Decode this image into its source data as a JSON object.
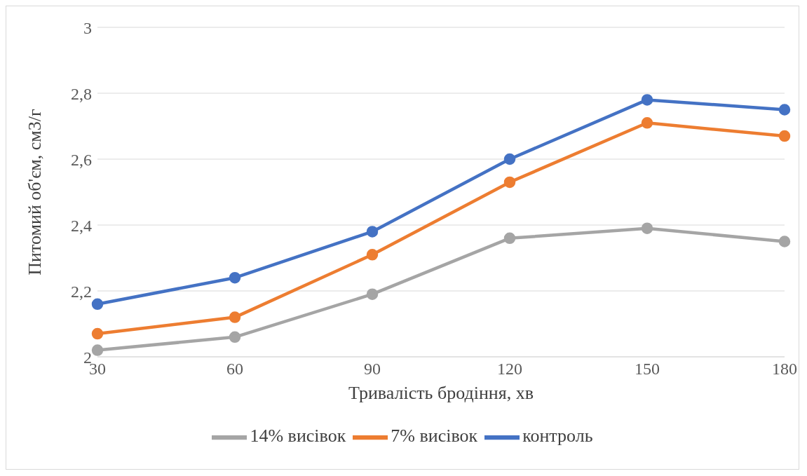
{
  "chart_data": {
    "type": "line",
    "xlabel": "Тривалість бродіння, хв",
    "ylabel": "Питомий об'єм, см3/г",
    "categories": [
      "30",
      "60",
      "90",
      "120",
      "150",
      "180"
    ],
    "series": [
      {
        "name": "контроль",
        "color": "#4472c4",
        "values": [
          2.16,
          2.24,
          2.38,
          2.6,
          2.78,
          2.75
        ]
      },
      {
        "name": "7% висівок",
        "color": "#ed7d31",
        "values": [
          2.07,
          2.12,
          2.31,
          2.53,
          2.71,
          2.67
        ]
      },
      {
        "name": "14% висівок",
        "color": "#a5a5a5",
        "values": [
          2.02,
          2.06,
          2.19,
          2.36,
          2.39,
          2.35
        ]
      }
    ],
    "ylim": [
      2,
      3
    ],
    "yticks": [
      2,
      {
        "value": 2.2,
        "label": "2,2"
      },
      {
        "value": 2.4,
        "label": "2,4"
      },
      {
        "value": 2.6,
        "label": "2,6"
      },
      {
        "value": 2.8,
        "label": "2,8"
      },
      3
    ],
    "grid": "y",
    "legend": "bottom",
    "marker": "circle",
    "line_style": "solid"
  }
}
